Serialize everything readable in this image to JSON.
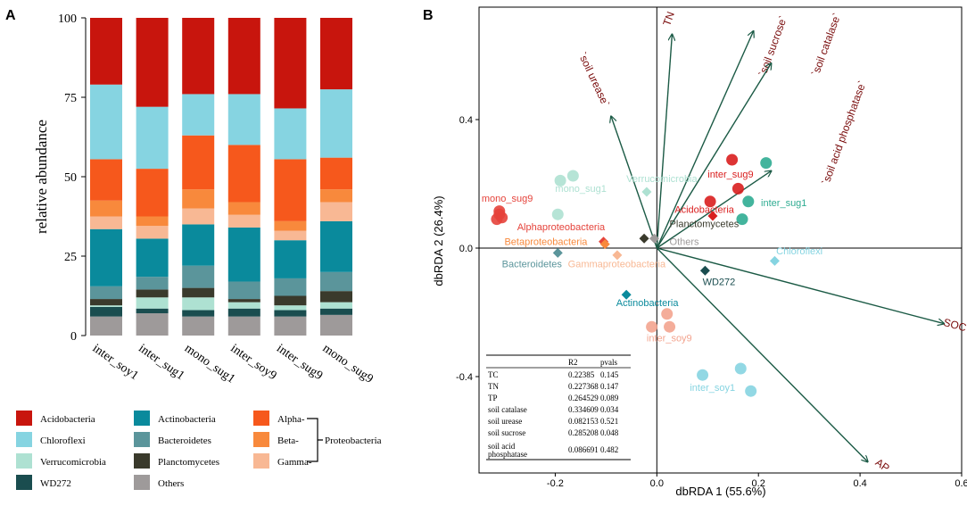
{
  "panels": {
    "a_label": "A",
    "b_label": "B"
  },
  "colors": {
    "Acidobacteria": "#c8150d",
    "Chloroflexi": "#86d4e1",
    "Verrucomicrobia": "#aee1d2",
    "WD272": "#1a4d4f",
    "Actinobacteria": "#0a8a9c",
    "Bacteroidetes": "#5b959b",
    "Planctomycetes": "#3a3a2c",
    "Others": "#9e9a9a",
    "Alphaproteobacteria": "#f6581c",
    "Betaproteobacteria": "#f8893c",
    "Gammaproteobacteria": "#f8b894",
    "arrow": "#1b5a45",
    "arrow_label": "#7a0d0d"
  },
  "legend": {
    "col1": [
      {
        "key": "Acidobacteria",
        "label": "Acidobacteria"
      },
      {
        "key": "Chloroflexi",
        "label": "Chloroflexi"
      },
      {
        "key": "Verrucomicrobia",
        "label": "Verrucomicrobia"
      },
      {
        "key": "WD272",
        "label": "WD272"
      }
    ],
    "col2": [
      {
        "key": "Actinobacteria",
        "label": "Actinobacteria"
      },
      {
        "key": "Bacteroidetes",
        "label": "Bacteroidetes"
      },
      {
        "key": "Planctomycetes",
        "label": "Planctomycetes"
      },
      {
        "key": "Others",
        "label": "Others"
      }
    ],
    "col3": [
      {
        "key": "Alphaproteobacteria",
        "label": "Alpha-"
      },
      {
        "key": "Betaproteobacteria",
        "label": "Beta-"
      },
      {
        "key": "Gammaproteobacteria",
        "label": "Gamma-"
      }
    ],
    "group_label": "Proteobacteria"
  },
  "chart_data": [
    {
      "type": "bar",
      "stacked": true,
      "panel": "A",
      "ylabel": "relative abundance",
      "xlabel": "",
      "ylim": [
        0,
        100
      ],
      "yticks": [
        "0",
        "25",
        "50",
        "75",
        "100"
      ],
      "categories": [
        "inter_soy1",
        "inter_sug1",
        "mono_sug1",
        "inter_soy9",
        "inter_sug9",
        "mono_sug9"
      ],
      "series": [
        {
          "name": "Others",
          "values": [
            6,
            7,
            6,
            6,
            6,
            6.5
          ]
        },
        {
          "name": "WD272",
          "values": [
            3,
            1.5,
            2,
            2.5,
            2,
            2
          ]
        },
        {
          "name": "Verrucomicrobia",
          "values": [
            0.5,
            3.5,
            4,
            2,
            1.5,
            2
          ]
        },
        {
          "name": "Planctomycetes",
          "values": [
            2,
            2.5,
            3,
            1,
            3,
            3.5
          ]
        },
        {
          "name": "Bacteroidetes",
          "values": [
            4,
            4,
            7,
            5.5,
            5.5,
            6
          ]
        },
        {
          "name": "Actinobacteria",
          "values": [
            18,
            12,
            13,
            17,
            12,
            16
          ]
        },
        {
          "name": "Gammaproteobacteria",
          "values": [
            4,
            4,
            5,
            4,
            3,
            6
          ]
        },
        {
          "name": "Betaproteobacteria",
          "values": [
            5,
            3,
            6,
            4,
            3,
            4
          ]
        },
        {
          "name": "Alphaproteobacteria",
          "values": [
            13,
            15,
            17,
            18,
            19.5,
            10
          ]
        },
        {
          "name": "Chloroflexi",
          "values": [
            23.5,
            19.5,
            13,
            16,
            16,
            21.5
          ]
        },
        {
          "name": "Acidobacteria",
          "values": [
            21,
            28,
            24,
            24,
            28.5,
            22.5
          ]
        }
      ]
    },
    {
      "type": "scatter",
      "panel": "B",
      "title": "",
      "xlabel": "dbRDA 1 (55.6%)",
      "ylabel": "dbRDA 2 (26.4%)",
      "xlim": [
        -0.35,
        0.6
      ],
      "ylim": [
        -0.7,
        0.75
      ],
      "xticks": [
        -0.2,
        0.0,
        0.2,
        0.4,
        0.6
      ],
      "xtick_labels": [
        "-0.2",
        "0.0",
        "0.2",
        "0.4",
        "0.6"
      ],
      "yticks": [
        -0.4,
        0.0,
        0.4
      ],
      "ytick_labels": [
        "-0.4",
        "0.0",
        "0.4"
      ],
      "samples": [
        {
          "group": "mono_sug9",
          "color": "#e5433b",
          "points": [
            [
              -0.31,
              0.115
            ],
            [
              -0.31,
              0.105
            ],
            [
              -0.315,
              0.09
            ],
            [
              -0.305,
              0.095
            ]
          ],
          "label": "mono_sug9",
          "label_pos": [
            -0.345,
            0.145
          ]
        },
        {
          "group": "mono_sug1",
          "color": "#aee1d2",
          "points": [
            [
              -0.19,
              0.21
            ],
            [
              -0.165,
              0.225
            ],
            [
              -0.195,
              0.105
            ]
          ],
          "label": "mono_sug1",
          "label_pos": [
            -0.2,
            0.175
          ]
        },
        {
          "group": "inter_sug9",
          "color": "#d91e1e",
          "points": [
            [
              0.148,
              0.275
            ],
            [
              0.16,
              0.185
            ],
            [
              0.105,
              0.145
            ]
          ],
          "label": "inter_sug9",
          "label_pos": [
            0.1,
            0.22
          ]
        },
        {
          "group": "inter_sug1",
          "color": "#2fac92",
          "points": [
            [
              0.215,
              0.265
            ],
            [
              0.18,
              0.145
            ],
            [
              0.168,
              0.09
            ]
          ],
          "label": "inter_sug1",
          "label_pos": [
            0.205,
            0.13
          ]
        },
        {
          "group": "inter_soy9",
          "color": "#f3a48f",
          "points": [
            [
              -0.01,
              -0.245
            ],
            [
              0.025,
              -0.245
            ],
            [
              0.02,
              -0.205
            ]
          ],
          "label": "inter_soy9",
          "label_pos": [
            -0.02,
            -0.29
          ]
        },
        {
          "group": "inter_soy1",
          "color": "#86d4e1",
          "points": [
            [
              0.09,
              -0.395
            ],
            [
              0.165,
              -0.375
            ],
            [
              0.185,
              -0.445
            ]
          ],
          "label": "inter_soy1",
          "label_pos": [
            0.065,
            -0.445
          ]
        }
      ],
      "taxa": [
        {
          "name": "Verrucomicrobia",
          "pos": [
            -0.02,
            0.175
          ],
          "color": "#aee1d2",
          "label_pos": [
            -0.06,
            0.205
          ]
        },
        {
          "name": "Acidobacteria",
          "pos": [
            0.11,
            0.1
          ],
          "color": "#d91e1e",
          "label_pos": [
            0.035,
            0.11
          ]
        },
        {
          "name": "Planctomycetes",
          "pos": [
            -0.025,
            0.03
          ],
          "color": "#3a3a2c",
          "label_pos": [
            0.025,
            0.065
          ]
        },
        {
          "name": "Others",
          "pos": [
            -0.005,
            0.03
          ],
          "color": "#9e9a9a",
          "label_pos": [
            0.025,
            0.01
          ]
        },
        {
          "name": "Alphaproteobacteria",
          "pos": [
            -0.105,
            0.02
          ],
          "color": "#e5433b",
          "label_pos": [
            -0.275,
            0.055
          ]
        },
        {
          "name": "Betaproteobacteria",
          "pos": [
            -0.102,
            0.012
          ],
          "color": "#f8893c",
          "label_pos": [
            -0.3,
            0.01
          ]
        },
        {
          "name": "Gammaproteobacteria",
          "pos": [
            -0.078,
            -0.022
          ],
          "color": "#f8b894",
          "label_pos": [
            -0.175,
            -0.06
          ]
        },
        {
          "name": "Bacteroidetes",
          "pos": [
            -0.195,
            -0.015
          ],
          "color": "#5b959b",
          "label_pos": [
            -0.305,
            -0.06
          ]
        },
        {
          "name": "Chloroflexi",
          "pos": [
            0.232,
            -0.04
          ],
          "color": "#86d4e1",
          "label_pos": [
            0.235,
            -0.02
          ]
        },
        {
          "name": "WD272",
          "pos": [
            0.095,
            -0.07
          ],
          "color": "#1a4d4f",
          "label_pos": [
            0.09,
            -0.115
          ]
        },
        {
          "name": "Actinobacteria",
          "pos": [
            -0.06,
            -0.145
          ],
          "color": "#0a8a9c",
          "label_pos": [
            -0.08,
            -0.18
          ]
        }
      ],
      "vectors": [
        {
          "name": "TN",
          "end": [
            0.03,
            0.665
          ],
          "label": "TN",
          "label_pos": [
            0.03,
            0.71
          ]
        },
        {
          "name": "soil sucrose",
          "end": [
            0.19,
            0.675
          ],
          "label": "`soil sucrose`",
          "label_pos": [
            0.235,
            0.625
          ]
        },
        {
          "name": "soil catalase",
          "end": [
            0.225,
            0.575
          ],
          "label": "`soil catalase`",
          "label_pos": [
            0.34,
            0.63
          ]
        },
        {
          "name": "soil urease",
          "end": [
            -0.09,
            0.41
          ],
          "label": "`soil urease`",
          "label_pos": [
            -0.13,
            0.52
          ]
        },
        {
          "name": "soil acid phosphatase",
          "end": [
            0.225,
            0.24
          ],
          "label": "`soil acid phosphatase`",
          "label_pos": [
            0.375,
            0.355
          ]
        },
        {
          "name": "SOC",
          "end": [
            0.565,
            -0.235
          ],
          "label": "SOC",
          "label_pos": [
            0.585,
            -0.25
          ]
        },
        {
          "name": "AP",
          "end": [
            0.415,
            -0.665
          ],
          "label": "AP",
          "label_pos": [
            0.44,
            -0.685
          ]
        }
      ],
      "table": {
        "headers": [
          "",
          "R2",
          "pvals"
        ],
        "rows": [
          [
            "TC",
            "0.22385",
            "0.145"
          ],
          [
            "TN",
            "0.227368",
            "0.147"
          ],
          [
            "TP",
            "0.264529",
            "0.089"
          ],
          [
            "soil catalase",
            "0.334609",
            "0.034"
          ],
          [
            "soil urease",
            "0.082153",
            "0.521"
          ],
          [
            "soil sucrose",
            "0.285208",
            "0.048"
          ],
          [
            "soil acid phosphatase",
            "0.086691",
            "0.482"
          ]
        ]
      }
    }
  ]
}
